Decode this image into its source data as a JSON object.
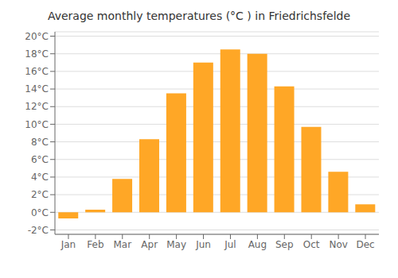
{
  "chart_data": {
    "type": "bar",
    "title": "Average monthly temperatures (°C ) in Friedrichsfelde",
    "categories": [
      "Jan",
      "Feb",
      "Mar",
      "Apr",
      "May",
      "Jun",
      "Jul",
      "Aug",
      "Sep",
      "Oct",
      "Nov",
      "Dec"
    ],
    "values": [
      -0.7,
      0.3,
      3.8,
      8.3,
      13.5,
      17.0,
      18.5,
      18.0,
      14.3,
      9.7,
      4.6,
      0.9
    ],
    "color": "#FFA726",
    "ylim": [
      -2.5,
      20.5
    ],
    "yticks": [
      {
        "value": -2,
        "label": "-2°C"
      },
      {
        "value": 0,
        "label": "0°C"
      },
      {
        "value": 2,
        "label": "2°C"
      },
      {
        "value": 4,
        "label": "4°C"
      },
      {
        "value": 6,
        "label": "6°C"
      },
      {
        "value": 8,
        "label": "8°C"
      },
      {
        "value": 10,
        "label": "10°C"
      },
      {
        "value": 12,
        "label": "12°C"
      },
      {
        "value": 14,
        "label": "14°C"
      },
      {
        "value": 16,
        "label": "16°C"
      },
      {
        "value": 18,
        "label": "18°C"
      },
      {
        "value": 20,
        "label": "20°C"
      }
    ],
    "grid": true
  }
}
